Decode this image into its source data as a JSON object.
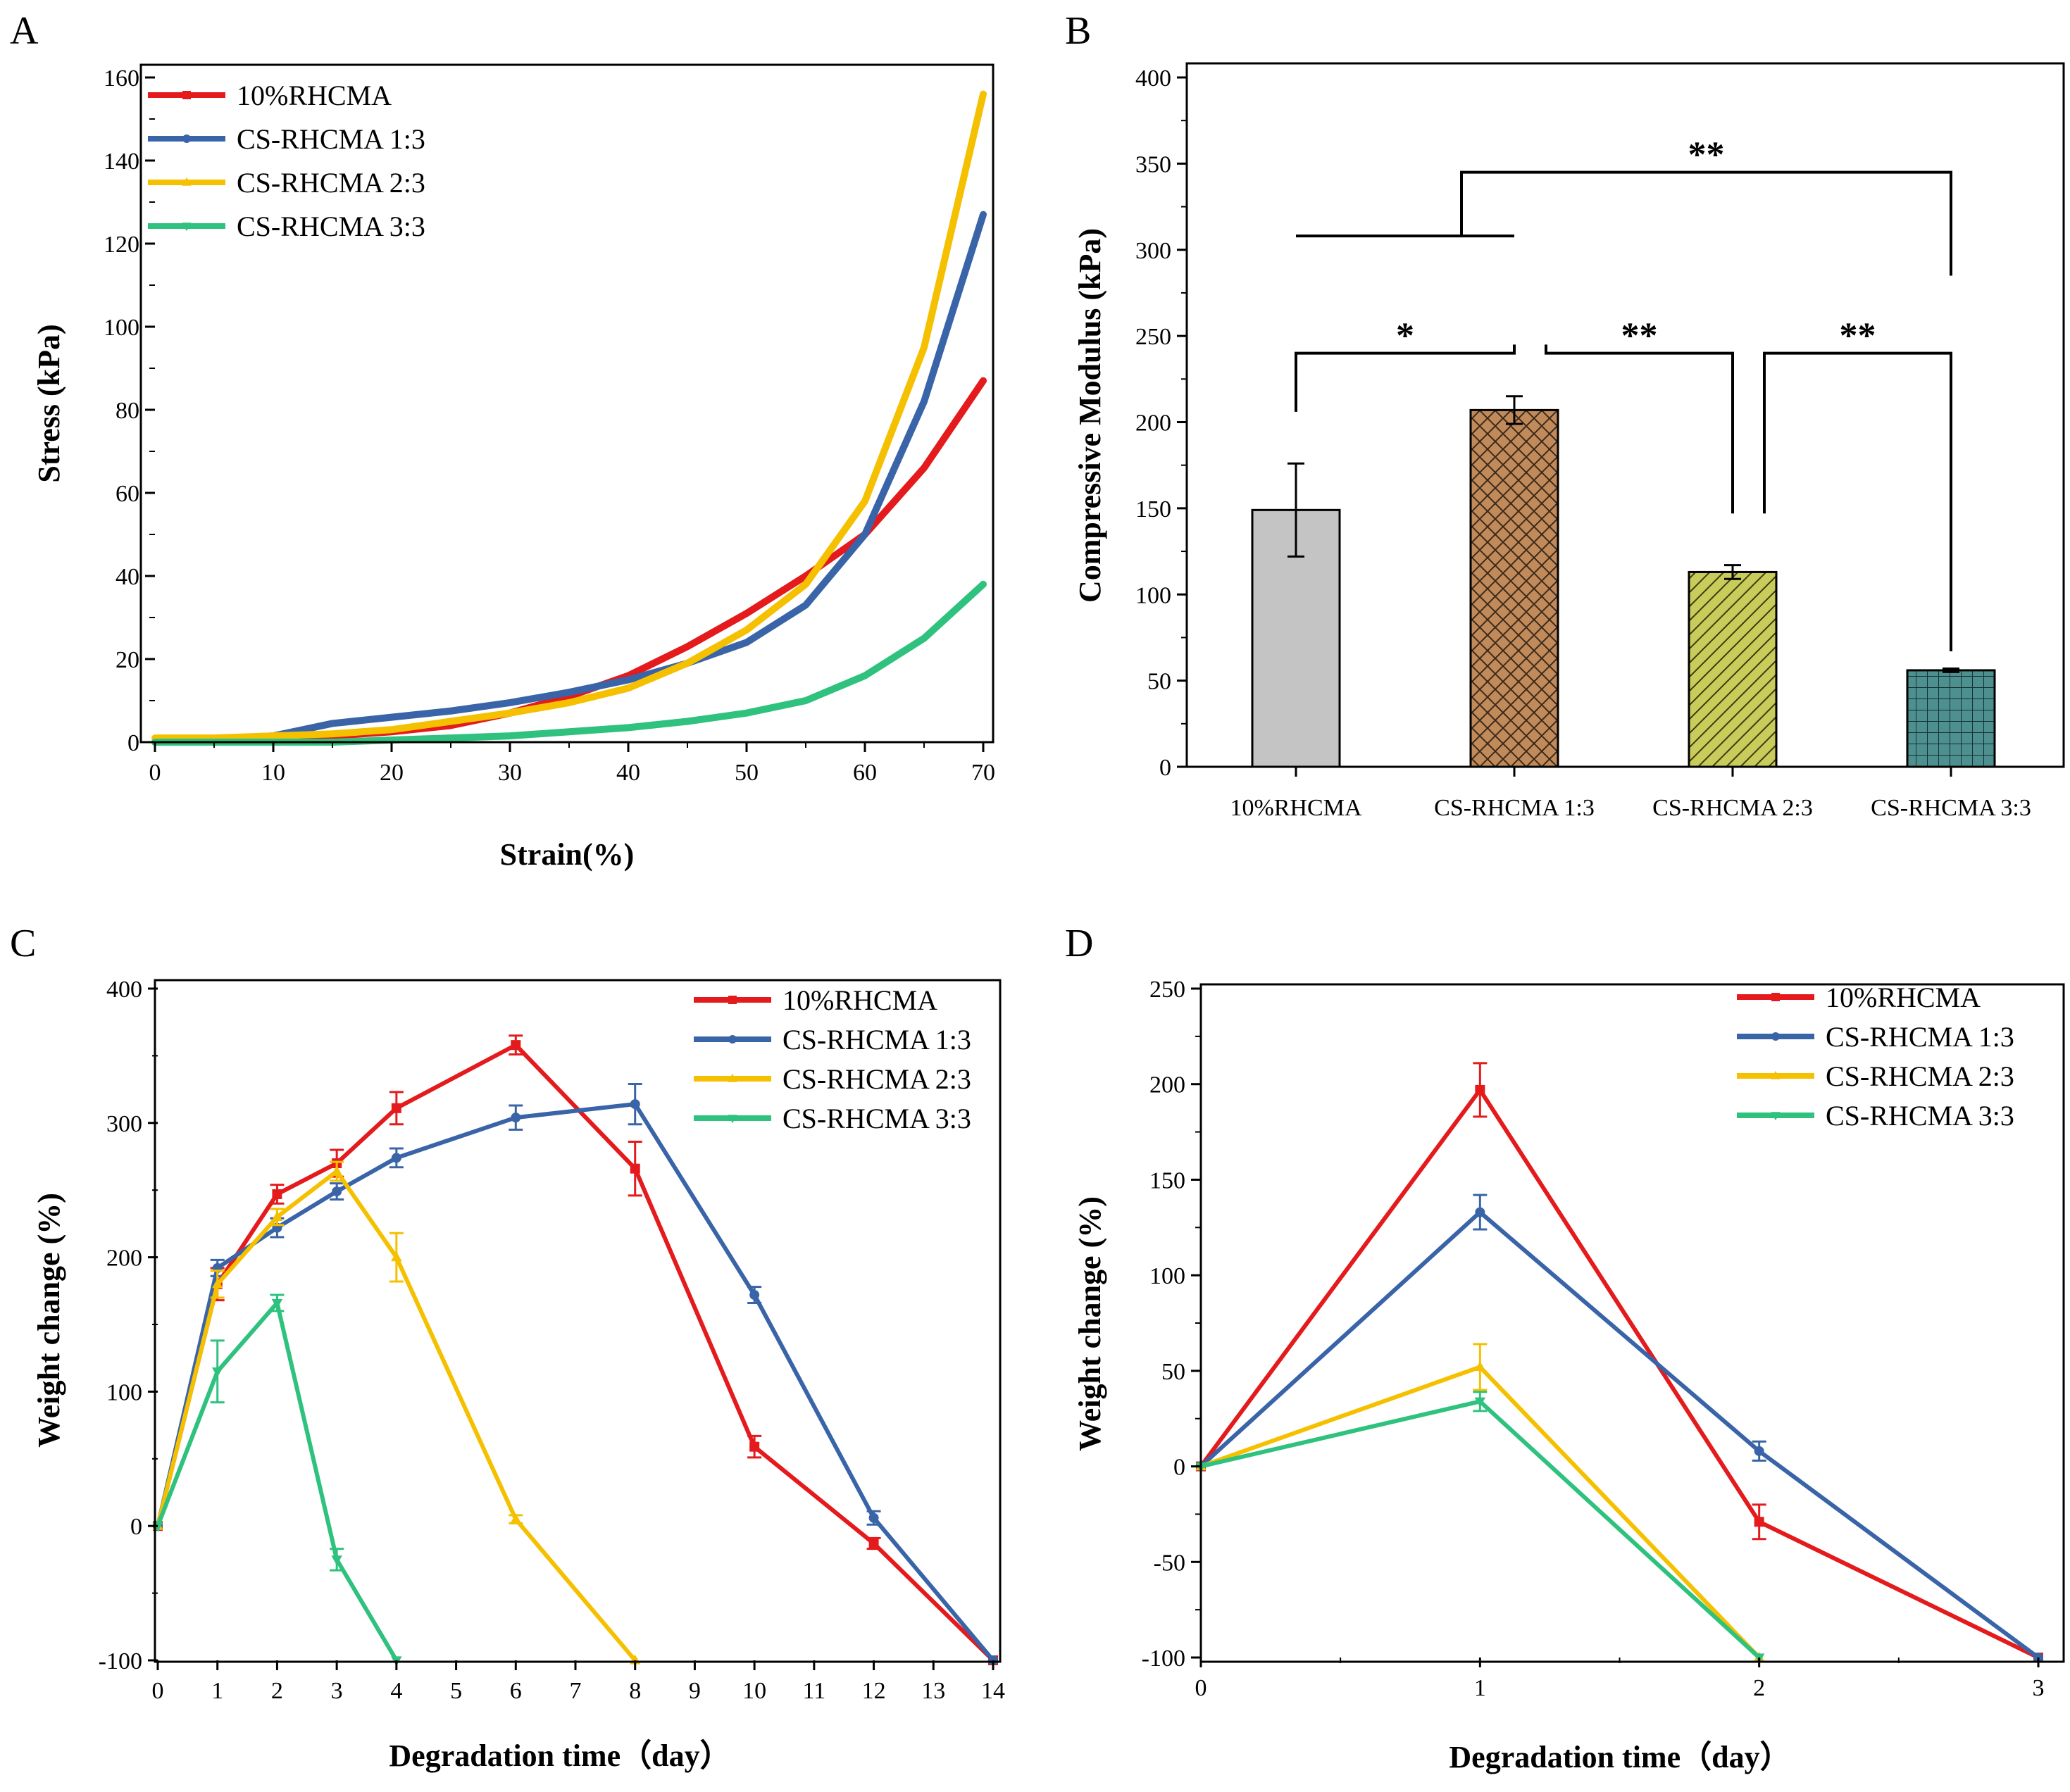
{
  "colors": {
    "red": "#e41a1c",
    "blue": "#3a64a8",
    "yellow": "#f5c000",
    "green": "#2ec27e",
    "bar_gray": "#c4c4c4",
    "bar_brown": "#c18a5b",
    "bar_olive": "#c9cc5a",
    "bar_teal": "#4e9090"
  },
  "chart_data": [
    {
      "panel": "A",
      "type": "line",
      "xlabel": "Strain(%)",
      "ylabel": "Stress (kPa)",
      "xlim": [
        0,
        70
      ],
      "ylim": [
        0,
        160
      ],
      "xticks": [
        0,
        10,
        20,
        30,
        40,
        50,
        60,
        70
      ],
      "yticks": [
        0,
        20,
        40,
        60,
        80,
        100,
        120,
        140,
        160
      ],
      "legend": "top-left",
      "x": [
        0,
        5,
        10,
        15,
        20,
        25,
        30,
        35,
        40,
        45,
        50,
        55,
        60,
        65,
        70
      ],
      "series": [
        {
          "name": "10%RHCMA",
          "color": "red",
          "marker": "square",
          "values": [
            0,
            0.5,
            1,
            1.5,
            2.5,
            4,
            7,
            11,
            16,
            23,
            31,
            40,
            50,
            66,
            87
          ]
        },
        {
          "name": "CS-RHCMA 1:3",
          "color": "blue",
          "marker": "circle",
          "values": [
            0,
            0.5,
            1.5,
            4.5,
            6,
            7.5,
            9.5,
            12,
            15,
            19,
            24,
            33,
            50,
            82,
            127
          ]
        },
        {
          "name": "CS-RHCMA 2:3",
          "color": "yellow",
          "marker": "triangle-up",
          "values": [
            1,
            1,
            1.5,
            2,
            3,
            5,
            7,
            9.5,
            13,
            19,
            27,
            38,
            58,
            95,
            156
          ]
        },
        {
          "name": "CS-RHCMA 3:3",
          "color": "green",
          "marker": "triangle-down",
          "values": [
            0,
            0,
            0,
            0,
            0.5,
            1,
            1.5,
            2.5,
            3.5,
            5,
            7,
            10,
            16,
            25,
            38
          ]
        }
      ]
    },
    {
      "panel": "B",
      "type": "bar",
      "ylabel": "Compressive Modulus (kPa)",
      "ylim": [
        0,
        400
      ],
      "yticks": [
        0,
        50,
        100,
        150,
        200,
        250,
        300,
        350,
        400
      ],
      "categories": [
        "10%RHCMA",
        "CS-RHCMA 1:3",
        "CS-RHCMA 2:3",
        "CS-RHCMA 3:3"
      ],
      "values": [
        149,
        207,
        113,
        56
      ],
      "errors": [
        27,
        8,
        4,
        1
      ],
      "fills": [
        "bar_gray",
        "bar_brown",
        "bar_olive",
        "bar_teal"
      ],
      "patterns": [
        "none",
        "crosshatch",
        "diagonal",
        "grid"
      ],
      "significance": [
        {
          "from": 0,
          "to": 1,
          "label": "*",
          "level": 240
        },
        {
          "from": 1,
          "to": 2,
          "label": "**",
          "level": 240
        },
        {
          "from": 2,
          "to": 3,
          "label": "**",
          "level": 240
        },
        {
          "from_group": [
            0,
            1
          ],
          "to": 3,
          "label": "**",
          "level": 345,
          "group_level": 308
        }
      ]
    },
    {
      "panel": "C",
      "type": "line",
      "xlabel": "Degradation time（day）",
      "ylabel": "Weight change (%)",
      "xlim": [
        0,
        14
      ],
      "ylim": [
        -100,
        400
      ],
      "xticks": [
        0,
        1,
        2,
        3,
        4,
        5,
        6,
        7,
        8,
        9,
        10,
        11,
        12,
        13,
        14
      ],
      "yticks": [
        -100,
        0,
        100,
        200,
        300,
        400
      ],
      "legend": "top-right",
      "series": [
        {
          "name": "10%RHCMA",
          "color": "red",
          "marker": "square",
          "x": [
            0,
            1,
            2,
            3,
            4,
            6,
            8,
            10,
            12,
            14
          ],
          "values": [
            0,
            180,
            247,
            270,
            311,
            358,
            266,
            59,
            -13,
            -100
          ],
          "errors": [
            0,
            12,
            7,
            10,
            12,
            7,
            20,
            8,
            4,
            0
          ]
        },
        {
          "name": "CS-RHCMA 1:3",
          "color": "blue",
          "marker": "circle",
          "x": [
            0,
            1,
            2,
            3,
            4,
            6,
            8,
            10,
            12,
            14
          ],
          "values": [
            0,
            192,
            222,
            249,
            274,
            304,
            314,
            172,
            6,
            -100
          ],
          "errors": [
            0,
            6,
            7,
            6,
            7,
            9,
            15,
            6,
            5,
            0
          ]
        },
        {
          "name": "CS-RHCMA 2:3",
          "color": "yellow",
          "marker": "triangle-up",
          "x": [
            0,
            1,
            2,
            3,
            4,
            6,
            8
          ],
          "values": [
            0,
            180,
            230,
            264,
            200,
            5,
            -100
          ],
          "errors": [
            0,
            10,
            6,
            7,
            18,
            3,
            0
          ]
        },
        {
          "name": "CS-RHCMA 3:3",
          "color": "green",
          "marker": "triangle-down",
          "x": [
            0,
            1,
            2,
            3,
            4
          ],
          "values": [
            0,
            115,
            166,
            -25,
            -100
          ],
          "errors": [
            0,
            23,
            6,
            8,
            0
          ]
        }
      ]
    },
    {
      "panel": "D",
      "type": "line",
      "xlabel": "Degradation time（day）",
      "ylabel": "Weight change (%)",
      "xlim": [
        0,
        3
      ],
      "ylim": [
        -100,
        250
      ],
      "xticks": [
        0,
        1,
        2,
        3
      ],
      "yticks": [
        -100,
        -50,
        0,
        50,
        100,
        150,
        200,
        250
      ],
      "legend": "top-right",
      "series": [
        {
          "name": "10%RHCMA",
          "color": "red",
          "marker": "square",
          "x": [
            0,
            1,
            2,
            3
          ],
          "values": [
            0,
            197,
            -29,
            -100
          ],
          "errors": [
            0,
            14,
            9,
            0
          ]
        },
        {
          "name": "CS-RHCMA 1:3",
          "color": "blue",
          "marker": "circle",
          "x": [
            0,
            1,
            2,
            3
          ],
          "values": [
            0,
            133,
            8,
            -100
          ],
          "errors": [
            0,
            9,
            5,
            0
          ]
        },
        {
          "name": "CS-RHCMA 2:3",
          "color": "yellow",
          "marker": "triangle-up",
          "x": [
            0,
            1,
            2
          ],
          "values": [
            0,
            52,
            -100
          ],
          "errors": [
            0,
            12,
            0
          ]
        },
        {
          "name": "CS-RHCMA 3:3",
          "color": "green",
          "marker": "triangle-down",
          "x": [
            0,
            1,
            2
          ],
          "values": [
            0,
            34,
            -100
          ],
          "errors": [
            0,
            5,
            0
          ]
        }
      ]
    }
  ]
}
